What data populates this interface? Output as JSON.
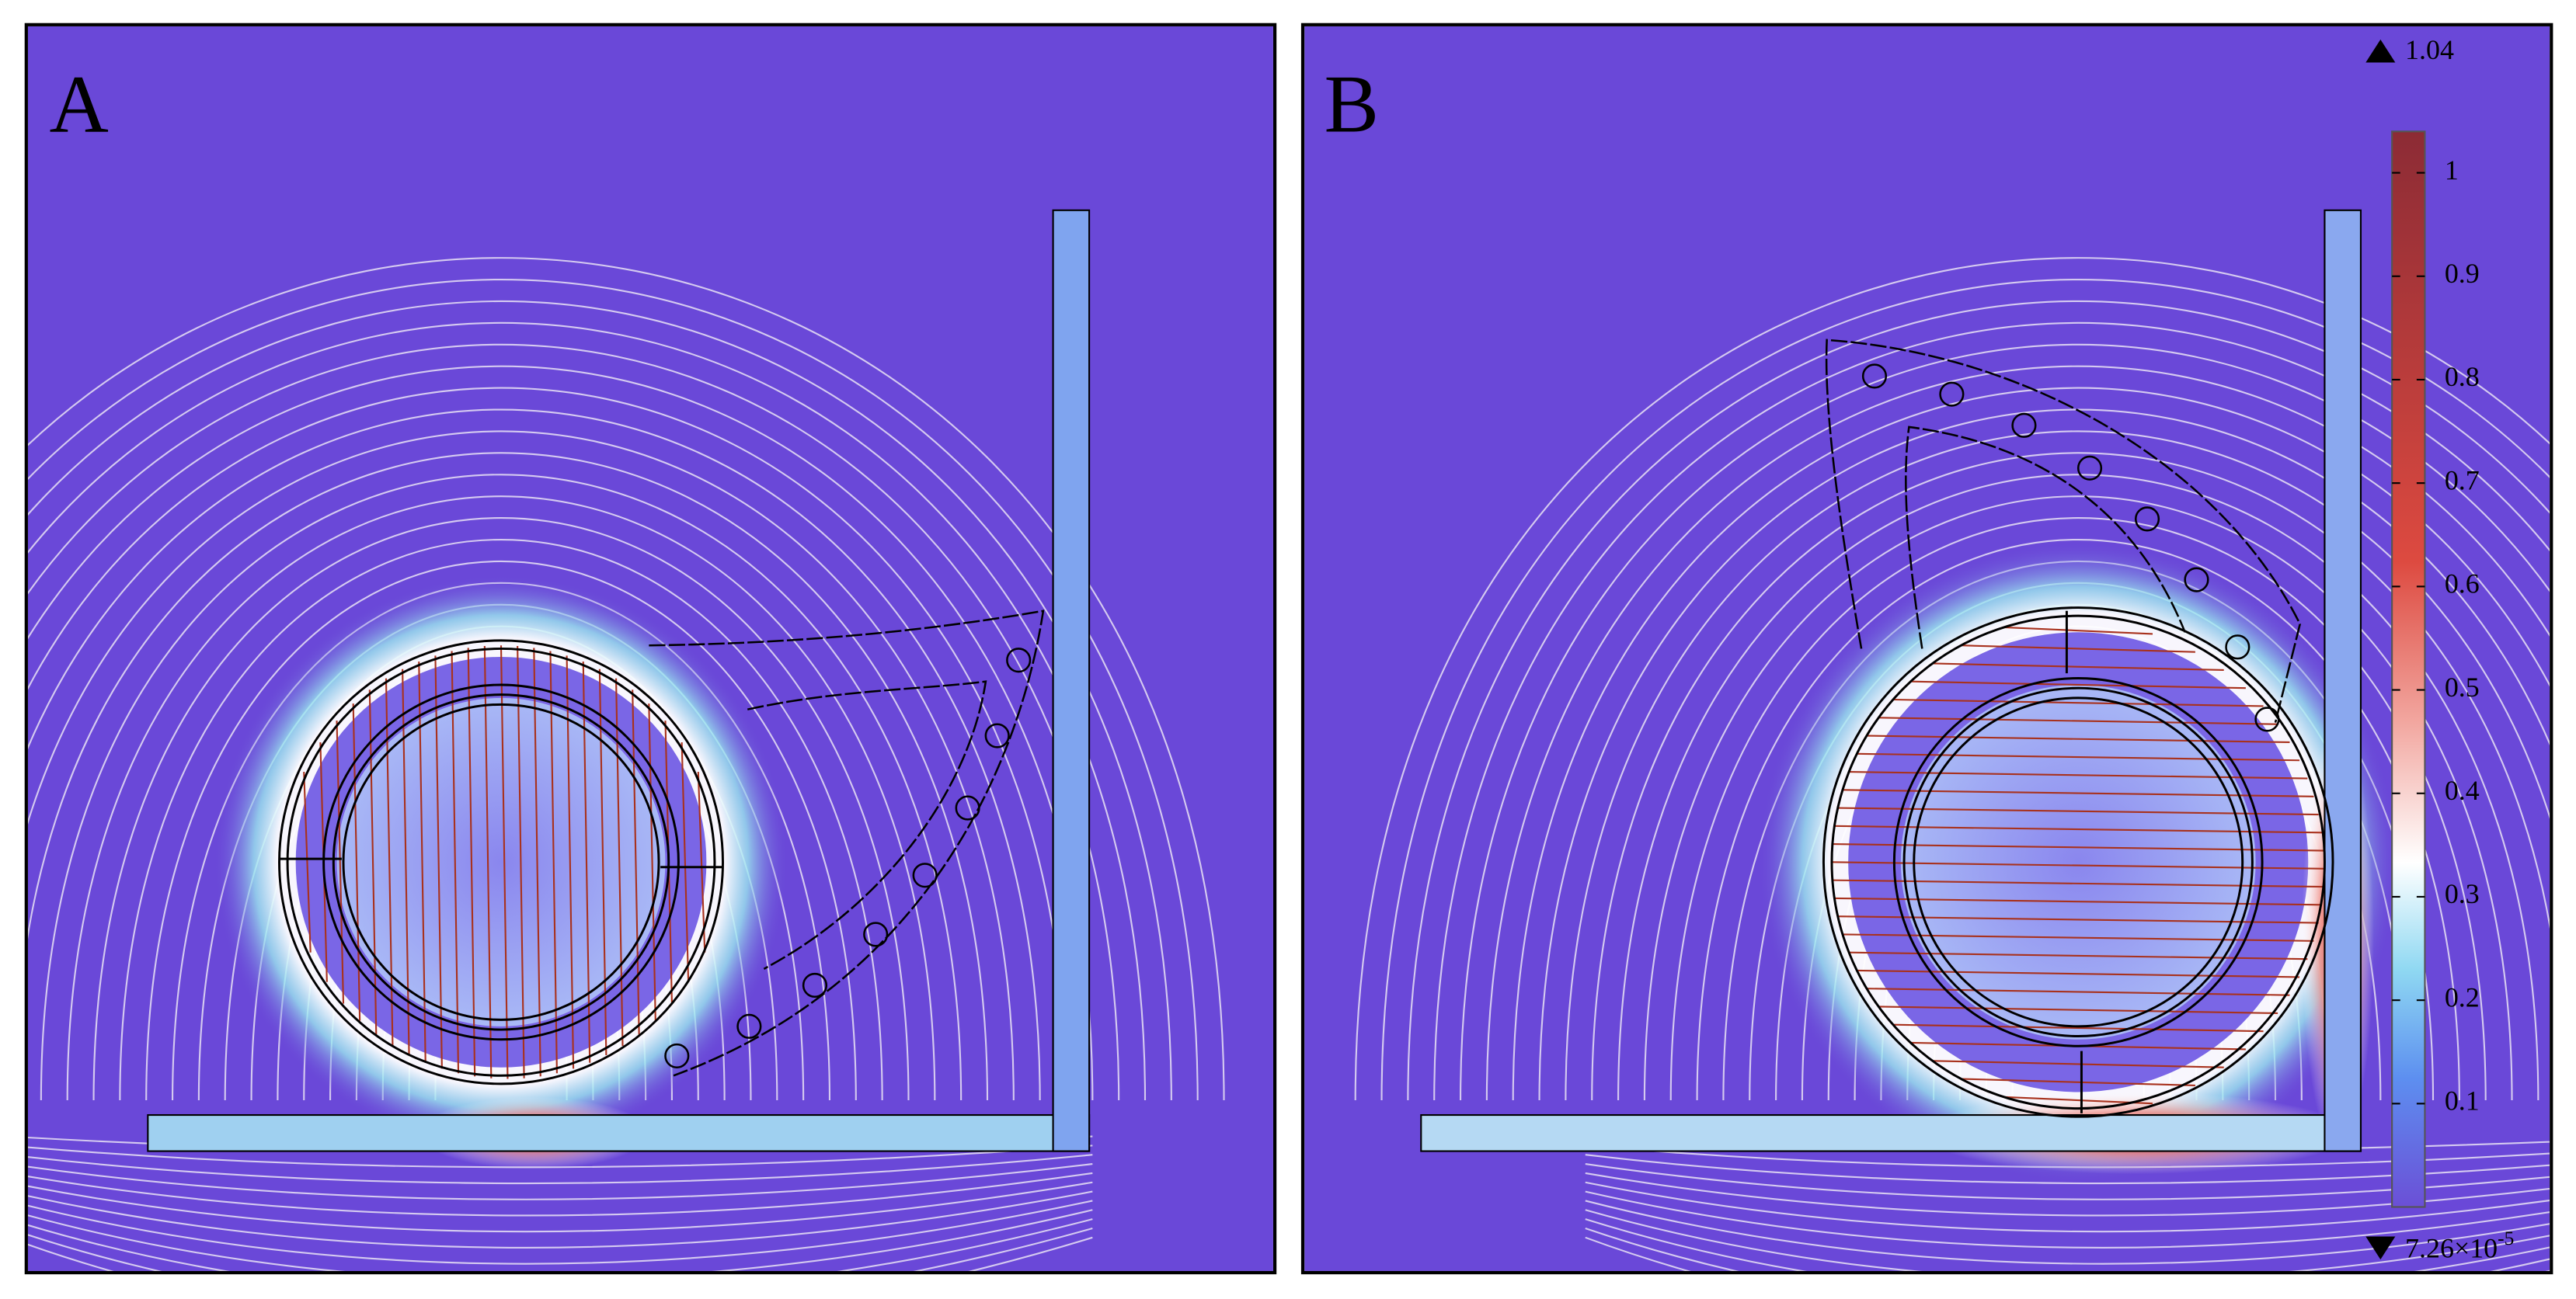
{
  "panels": [
    {
      "label": "A"
    },
    {
      "label": "B"
    }
  ],
  "colorbar": {
    "max": 1.04,
    "min": {
      "value": 7.26e-05,
      "label": "7.26×10",
      "sup": "-5"
    },
    "ticks": [
      0.1,
      0.2,
      0.3,
      0.4,
      0.5,
      0.6,
      0.7,
      0.8,
      0.9,
      1
    ]
  }
}
